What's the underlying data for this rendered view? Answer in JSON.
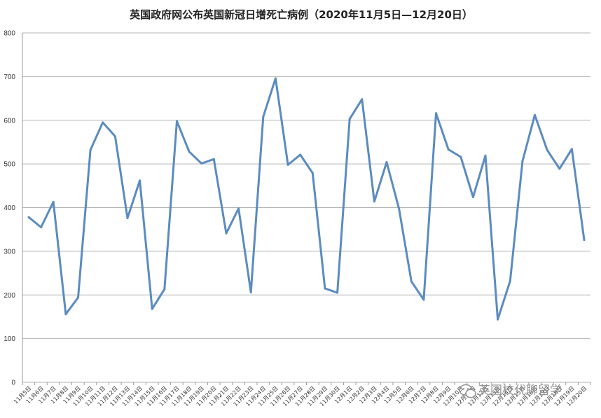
{
  "chart_data": {
    "type": "line",
    "title": "英国政府网公布英国新冠日增死亡病例（2020年11月5日—12月20日）",
    "xlabel": "",
    "ylabel": "",
    "ylim": [
      0,
      800
    ],
    "yticks": [
      0,
      100,
      200,
      300,
      400,
      500,
      600,
      700,
      800
    ],
    "grid": true,
    "legend": "none",
    "line_color": "#5b8bbf",
    "grid_color": "#b3b3b3",
    "categories": [
      "11月5日",
      "11月6日",
      "11月7日",
      "11月8日",
      "11月9日",
      "11月10日",
      "11月11日",
      "11月12日",
      "11月13日",
      "11月14日",
      "11月15日",
      "11月16日",
      "11月17日",
      "11月18日",
      "11月19日",
      "11月20日",
      "11月21日",
      "11月22日",
      "11月23日",
      "11月24日",
      "11月25日",
      "11月26日",
      "11月27日",
      "11月28日",
      "11月29日",
      "11月30日",
      "12月1日",
      "12月2日",
      "12月3日",
      "12月4日",
      "12月5日",
      "12月6日",
      "12月7日",
      "12月8日",
      "12月9日",
      "12月10日",
      "12月11日",
      "12月12日",
      "12月13日",
      "12月14日",
      "12月15日",
      "12月16日",
      "12月17日",
      "12月18日",
      "12月19日",
      "12月20日"
    ],
    "series": [
      {
        "values": [
          378,
          355,
          413,
          156,
          194,
          532,
          595,
          563,
          376,
          462,
          168,
          213,
          598,
          528,
          501,
          511,
          341,
          398,
          206,
          608,
          696,
          498,
          521,
          479,
          215,
          205,
          603,
          648,
          414,
          504,
          397,
          231,
          189,
          616,
          533,
          516,
          424,
          519,
          144,
          232,
          506,
          612,
          532,
          489,
          534,
          326
        ]
      }
    ]
  },
  "watermark": {
    "text": "英国校代聊留学",
    "icon": "wechat-icon"
  }
}
